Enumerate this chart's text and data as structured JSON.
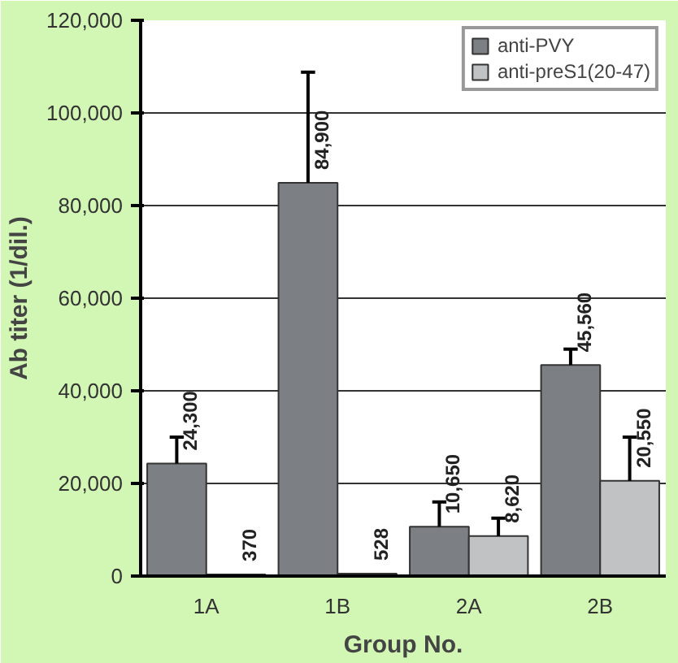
{
  "chart_data": {
    "type": "bar",
    "xlabel": "Group No.",
    "ylabel": "Ab titer (1/dil.)",
    "categories": [
      "1A",
      "1B",
      "2A",
      "2B"
    ],
    "series": [
      {
        "name": "anti-PVY",
        "color": "#7c8084",
        "values": [
          24300,
          84900,
          10650,
          45560
        ],
        "errors": [
          [
            24300,
            30000
          ],
          [
            84900,
            108800
          ],
          [
            10650,
            16000
          ],
          [
            45560,
            49000
          ]
        ],
        "value_labels": [
          "24,300",
          "84,900",
          "10,650",
          "45,560"
        ]
      },
      {
        "name": "anti-preS1(20-47)",
        "color": "#c0c2c4",
        "values": [
          370,
          528,
          8620,
          20550
        ],
        "errors": [
          null,
          null,
          [
            8620,
            12500
          ],
          [
            20550,
            30000
          ]
        ],
        "value_labels": [
          "370",
          "528",
          "8,620",
          "20,550"
        ]
      }
    ],
    "ylim": [
      0,
      120000
    ],
    "yticks": [
      {
        "value": 0,
        "label": "0"
      },
      {
        "value": 20000,
        "label": "20,000"
      },
      {
        "value": 40000,
        "label": "40,000"
      },
      {
        "value": 60000,
        "label": "60,000"
      },
      {
        "value": 80000,
        "label": "80,000"
      },
      {
        "value": 100000,
        "label": "100,000"
      },
      {
        "value": 120000,
        "label": "120,000"
      }
    ],
    "grid": "y",
    "legend": "top right"
  }
}
